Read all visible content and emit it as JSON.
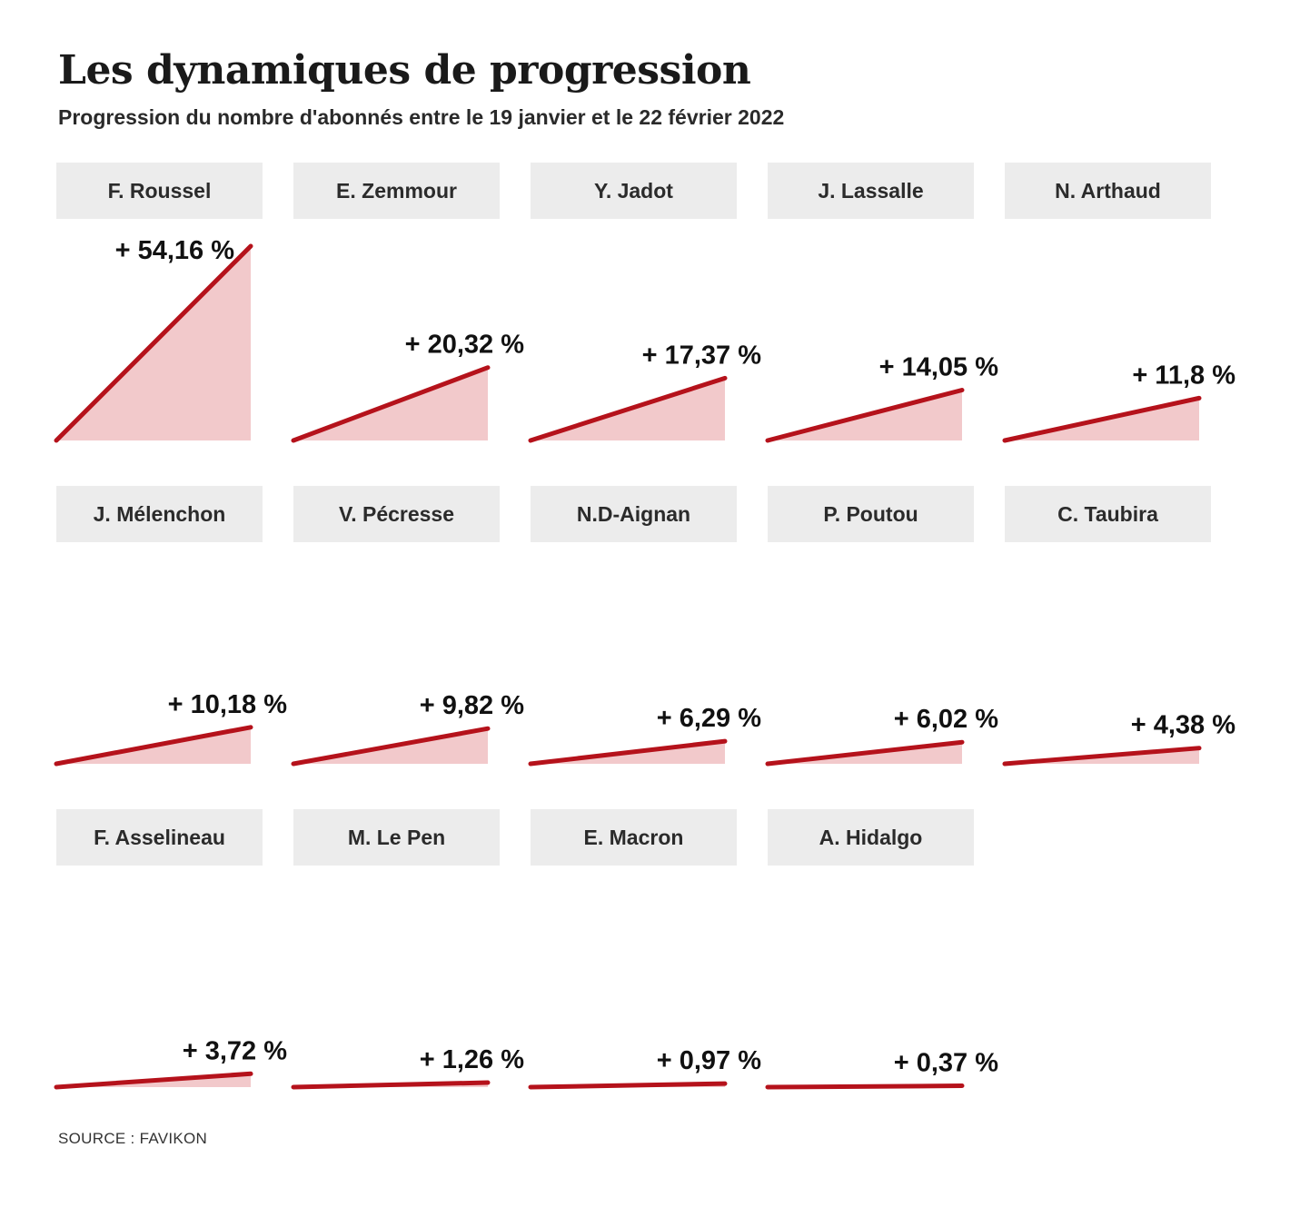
{
  "chart_data": {
    "type": "area",
    "title": "Les dynamiques de progression",
    "subtitle": "Progression du nombre d'abonnés entre le 19 janvier et le 22 février 2022",
    "source": "SOURCE : FAVIKON",
    "unit": "%",
    "ylim": [
      0,
      54.16
    ],
    "colors": {
      "line": "#b5121b",
      "fill": "#f2c9cb",
      "label_bg": "#ececec"
    },
    "series": [
      {
        "name": "F. Roussel",
        "value": 54.16,
        "label": "+ 54,16 %"
      },
      {
        "name": "E. Zemmour",
        "value": 20.32,
        "label": "+ 20,32 %"
      },
      {
        "name": "Y. Jadot",
        "value": 17.37,
        "label": "+ 17,37 %"
      },
      {
        "name": "J. Lassalle",
        "value": 14.05,
        "label": "+ 14,05 %"
      },
      {
        "name": "N. Arthaud",
        "value": 11.8,
        "label": "+ 11,8 %"
      },
      {
        "name": "J. Mélenchon",
        "value": 10.18,
        "label": "+ 10,18 %"
      },
      {
        "name": "V. Pécresse",
        "value": 9.82,
        "label": "+ 9,82 %"
      },
      {
        "name": "N.D-Aignan",
        "value": 6.29,
        "label": "+ 6,29 %"
      },
      {
        "name": "P. Poutou",
        "value": 6.02,
        "label": "+ 6,02 %"
      },
      {
        "name": "C. Taubira",
        "value": 4.38,
        "label": "+ 4,38 %"
      },
      {
        "name": "F. Asselineau",
        "value": 3.72,
        "label": "+ 3,72 %"
      },
      {
        "name": "M. Le Pen",
        "value": 1.26,
        "label": "+ 1,26 %"
      },
      {
        "name": "E. Macron",
        "value": 0.97,
        "label": "+ 0,97 %"
      },
      {
        "name": "A. Hidalgo",
        "value": 0.37,
        "label": "+ 0,37 %"
      }
    ]
  }
}
